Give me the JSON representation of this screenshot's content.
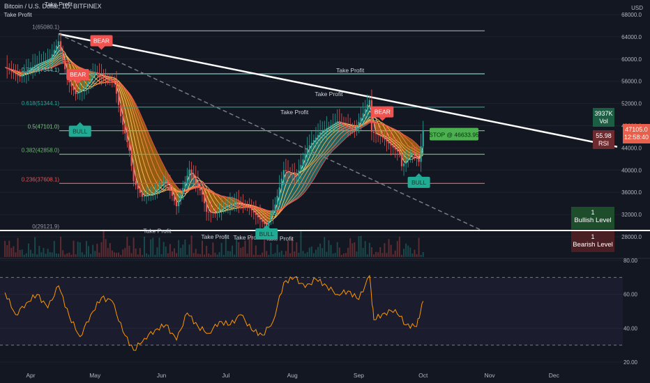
{
  "header": {
    "title": "Bitcoin / U.S. Dollar, 1D, BITFINEX",
    "currency": "USD"
  },
  "chart_data": [
    {
      "type": "line",
      "panel": "price",
      "y_scale": "linear",
      "ylim": [
        26000,
        70000
      ],
      "x_labels": [
        "Apr",
        "May",
        "Jun",
        "Jul",
        "Aug",
        "Sep",
        "Oct",
        "Nov",
        "Dec"
      ],
      "y_ticks": [
        "28000.0",
        "32000.0",
        "36000.0",
        "40000.0",
        "44000.0",
        "48000.0",
        "52000.0",
        "56000.0",
        "60000.0",
        "64000.0",
        "68000.0"
      ],
      "series": [
        {
          "color": "#e8e8e8",
          "x": [
            "2021-03-20",
            "2021-03-27",
            "2021-04-03",
            "2021-04-10",
            "2021-04-14",
            "2021-04-18",
            "2021-04-22",
            "2021-04-26",
            "2021-05-01",
            "2021-05-06",
            "2021-05-10",
            "2021-05-13",
            "2021-05-17",
            "2021-05-19",
            "2021-05-23",
            "2021-05-28",
            "2021-06-03",
            "2021-06-08",
            "2021-06-14",
            "2021-06-20",
            "2021-06-22",
            "2021-06-26",
            "2021-07-01",
            "2021-07-06",
            "2021-07-12",
            "2021-07-16",
            "2021-07-20",
            "2021-07-24",
            "2021-07-28",
            "2021-08-03",
            "2021-08-08",
            "2021-08-14",
            "2021-08-22",
            "2021-08-30",
            "2021-09-06",
            "2021-09-07",
            "2021-09-12",
            "2021-09-20",
            "2021-09-21",
            "2021-09-26",
            "2021-09-29",
            "2021-10-01"
          ],
          "values": [
            58500,
            56800,
            58900,
            60100,
            63200,
            56500,
            53700,
            54800,
            57600,
            56400,
            55800,
            49700,
            43500,
            38000,
            35200,
            35800,
            38200,
            33500,
            40100,
            35600,
            32500,
            32200,
            33500,
            34200,
            33200,
            31500,
            29900,
            33800,
            40000,
            38900,
            44000,
            46800,
            48800,
            47100,
            52600,
            46900,
            45900,
            43000,
            40700,
            43200,
            41500,
            47100
          ]
        }
      ],
      "fib_levels": [
        {
          "label": "1(65080.1)",
          "price": 65080.1,
          "color": "#9598a1"
        },
        {
          "label": "0.786(57344.1)",
          "price": 57344.1,
          "color": "#80cbc4"
        },
        {
          "label": "0.618(51344.1)",
          "price": 51344.1,
          "color": "#26a69a"
        },
        {
          "label": "0.5(47101.0)",
          "price": 47101.0,
          "color": "#81c784"
        },
        {
          "label": "0.382(42858.0)",
          "price": 42858.0,
          "color": "#66bb6a"
        },
        {
          "label": "0.236(37608.1)",
          "price": 37608.1,
          "color": "#ef5350"
        },
        {
          "label": "0(29121.9)",
          "price": 29121.9,
          "color": "#9598a1"
        }
      ],
      "annotations": [
        {
          "text": "Take Profit",
          "x": "2021-04-14",
          "price": 69500
        },
        {
          "text": "Take Profit",
          "x": "2021-03-26",
          "price": 67600
        },
        {
          "text": "Take Profit",
          "x": "2021-08-28",
          "price": 57600
        },
        {
          "text": "Take Profit",
          "x": "2021-08-18",
          "price": 53300
        },
        {
          "text": "Take Profit",
          "x": "2021-08-02",
          "price": 50100
        },
        {
          "text": "Take Profit",
          "x": "2021-05-30",
          "price": 28700
        },
        {
          "text": "Take Profit",
          "x": "2021-06-26",
          "price": 27600
        },
        {
          "text": "Take Profit",
          "x": "2021-07-11",
          "price": 27500
        },
        {
          "text": "Take Profit",
          "x": "2021-07-26",
          "price": 27300
        }
      ],
      "signals": [
        {
          "text": "BEAR",
          "x": "2021-05-04",
          "price": 63300,
          "color": "#f05350"
        },
        {
          "text": "BEAR",
          "x": "2021-04-23",
          "price": 57200,
          "color": "#f05350"
        },
        {
          "text": "BULL",
          "x": "2021-04-24",
          "price": 47000,
          "color": "#22ab94"
        },
        {
          "text": "BEAR",
          "x": "2021-09-12",
          "price": 50500,
          "color": "#f05350"
        },
        {
          "text": "BULL",
          "x": "2021-07-20",
          "price": 28500,
          "color": "#22ab94"
        },
        {
          "text": "BULL",
          "x": "2021-09-29",
          "price": 37800,
          "color": "#22ab94"
        }
      ],
      "stop_label": "STOP @ 46633.95",
      "right_panel": {
        "price_badge": "47105.0",
        "countdown": "12:58:40",
        "vol_value": "3937K",
        "vol_label": "Vol",
        "rsi_value": "55.98",
        "rsi_label": "RSI",
        "bullish_count": "1",
        "bullish_label": "Bullish Level",
        "bearish_count": "1",
        "bearish_label": "Bearish Level"
      },
      "colors": {
        "background": "#131722",
        "trendline": "#ffffff",
        "price_tag": "#e8604c",
        "stop": "#4caf50",
        "ribbon_up": "#26a69a",
        "ribbon_down": "#ff9800"
      }
    },
    {
      "type": "line",
      "panel": "rsi",
      "ylim": [
        20,
        80
      ],
      "y_ticks": [
        "20.00",
        "40.00",
        "60.00",
        "80.00"
      ],
      "bands": [
        30,
        70
      ],
      "series": [
        {
          "color": "#ff9800",
          "x": [
            "2021-03-20",
            "2021-03-25",
            "2021-03-30",
            "2021-04-04",
            "2021-04-09",
            "2021-04-14",
            "2021-04-19",
            "2021-04-24",
            "2021-04-29",
            "2021-05-04",
            "2021-05-09",
            "2021-05-14",
            "2021-05-19",
            "2021-05-24",
            "2021-05-29",
            "2021-06-03",
            "2021-06-08",
            "2021-06-13",
            "2021-06-18",
            "2021-06-23",
            "2021-06-28",
            "2021-07-03",
            "2021-07-08",
            "2021-07-13",
            "2021-07-18",
            "2021-07-23",
            "2021-07-28",
            "2021-08-02",
            "2021-08-07",
            "2021-08-12",
            "2021-08-17",
            "2021-08-22",
            "2021-08-27",
            "2021-09-01",
            "2021-09-06",
            "2021-09-08",
            "2021-09-13",
            "2021-09-18",
            "2021-09-23",
            "2021-09-28",
            "2021-10-01"
          ],
          "values": [
            61,
            48,
            55,
            60,
            52,
            65,
            47,
            35,
            48,
            58,
            56,
            38,
            27,
            34,
            39,
            42,
            33,
            49,
            41,
            37,
            44,
            42,
            48,
            39,
            36,
            44,
            67,
            70,
            64,
            69,
            65,
            60,
            62,
            57,
            71,
            45,
            49,
            51,
            42,
            41,
            56
          ]
        }
      ]
    }
  ]
}
